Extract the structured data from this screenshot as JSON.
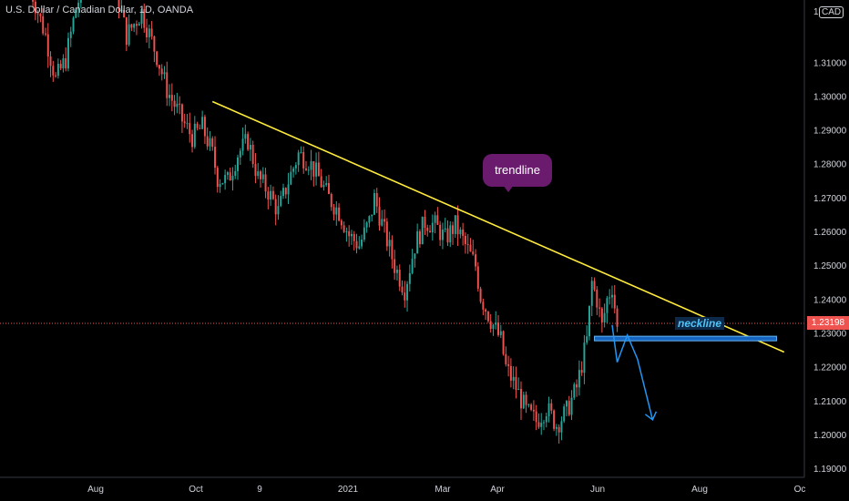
{
  "header": {
    "title": "U.S. Dollar / Canadian Dollar, 1D, OANDA"
  },
  "currency_badge": "CAD",
  "current_price_label": "1.23198",
  "annotations": {
    "trendline": "trendline",
    "neckline": "neckline"
  },
  "colors": {
    "up": "#26a69a",
    "down": "#ef5350",
    "trendline": "#ffeb3b",
    "neckline": "#2196f3",
    "bubble": "#6a1b6e"
  },
  "chart_data": {
    "type": "candlestick",
    "y_axis": {
      "ticks": [
        "1.19000",
        "1.20000",
        "1.21000",
        "1.22000",
        "1.23000",
        "1.24000",
        "1.25000",
        "1.26000",
        "1.27000",
        "1.28000",
        "1.29000",
        "1.30000",
        "1.31000"
      ],
      "top_partial_label": "1.3",
      "range": [
        1.1875,
        1.3285
      ]
    },
    "x_axis": {
      "ticks": [
        "Aug",
        "Oct",
        "9",
        "2021",
        "Mar",
        "Apr",
        "Jun",
        "Aug",
        "Oc"
      ]
    },
    "current_price": 1.23198,
    "close_path": [
      [
        0,
        1.332
      ],
      [
        6,
        1.318
      ],
      [
        10,
        1.305
      ],
      [
        14,
        1.311
      ],
      [
        18,
        1.326
      ],
      [
        22,
        1.335
      ],
      [
        28,
        1.345
      ],
      [
        34,
        1.331
      ],
      [
        38,
        1.318
      ],
      [
        44,
        1.325
      ],
      [
        50,
        1.312
      ],
      [
        54,
        1.302
      ],
      [
        60,
        1.293
      ],
      [
        64,
        1.288
      ],
      [
        68,
        1.291
      ],
      [
        72,
        1.283
      ],
      [
        74,
        1.276
      ],
      [
        78,
        1.275
      ],
      [
        82,
        1.283
      ],
      [
        86,
        1.287
      ],
      [
        90,
        1.276
      ],
      [
        94,
        1.272
      ],
      [
        98,
        1.266
      ],
      [
        102,
        1.275
      ],
      [
        106,
        1.283
      ],
      [
        110,
        1.281
      ],
      [
        114,
        1.276
      ],
      [
        118,
        1.27
      ],
      [
        122,
        1.266
      ],
      [
        126,
        1.259
      ],
      [
        130,
        1.256
      ],
      [
        134,
        1.263
      ],
      [
        136,
        1.27
      ],
      [
        140,
        1.26
      ],
      [
        144,
        1.25
      ],
      [
        148,
        1.243
      ],
      [
        152,
        1.256
      ],
      [
        156,
        1.263
      ],
      [
        160,
        1.262
      ],
      [
        164,
        1.258
      ],
      [
        168,
        1.262
      ],
      [
        172,
        1.256
      ],
      [
        176,
        1.25
      ],
      [
        178,
        1.241
      ],
      [
        182,
        1.234
      ],
      [
        186,
        1.228
      ],
      [
        188,
        1.22
      ],
      [
        192,
        1.214
      ],
      [
        196,
        1.207
      ],
      [
        200,
        1.204
      ],
      [
        204,
        1.208
      ],
      [
        208,
        1.203
      ],
      [
        212,
        1.207
      ],
      [
        216,
        1.214
      ],
      [
        220,
        1.228
      ],
      [
        222,
        1.245
      ],
      [
        224,
        1.24
      ],
      [
        226,
        1.232
      ],
      [
        228,
        1.24
      ],
      [
        230,
        1.244
      ],
      [
        232,
        1.232
      ]
    ],
    "x_day_range": [
      -12,
      306
    ],
    "trendline": {
      "start": [
        72,
        1.2985
      ],
      "end": [
        298,
        1.2245
      ]
    },
    "neckline": {
      "price": 1.2285,
      "from_day": 223,
      "to_day": 295
    },
    "projection_path": [
      [
        230,
        1.2325
      ],
      [
        232,
        1.2215
      ],
      [
        236,
        1.2295
      ],
      [
        240,
        1.2225
      ],
      [
        246,
        1.2045
      ]
    ]
  }
}
